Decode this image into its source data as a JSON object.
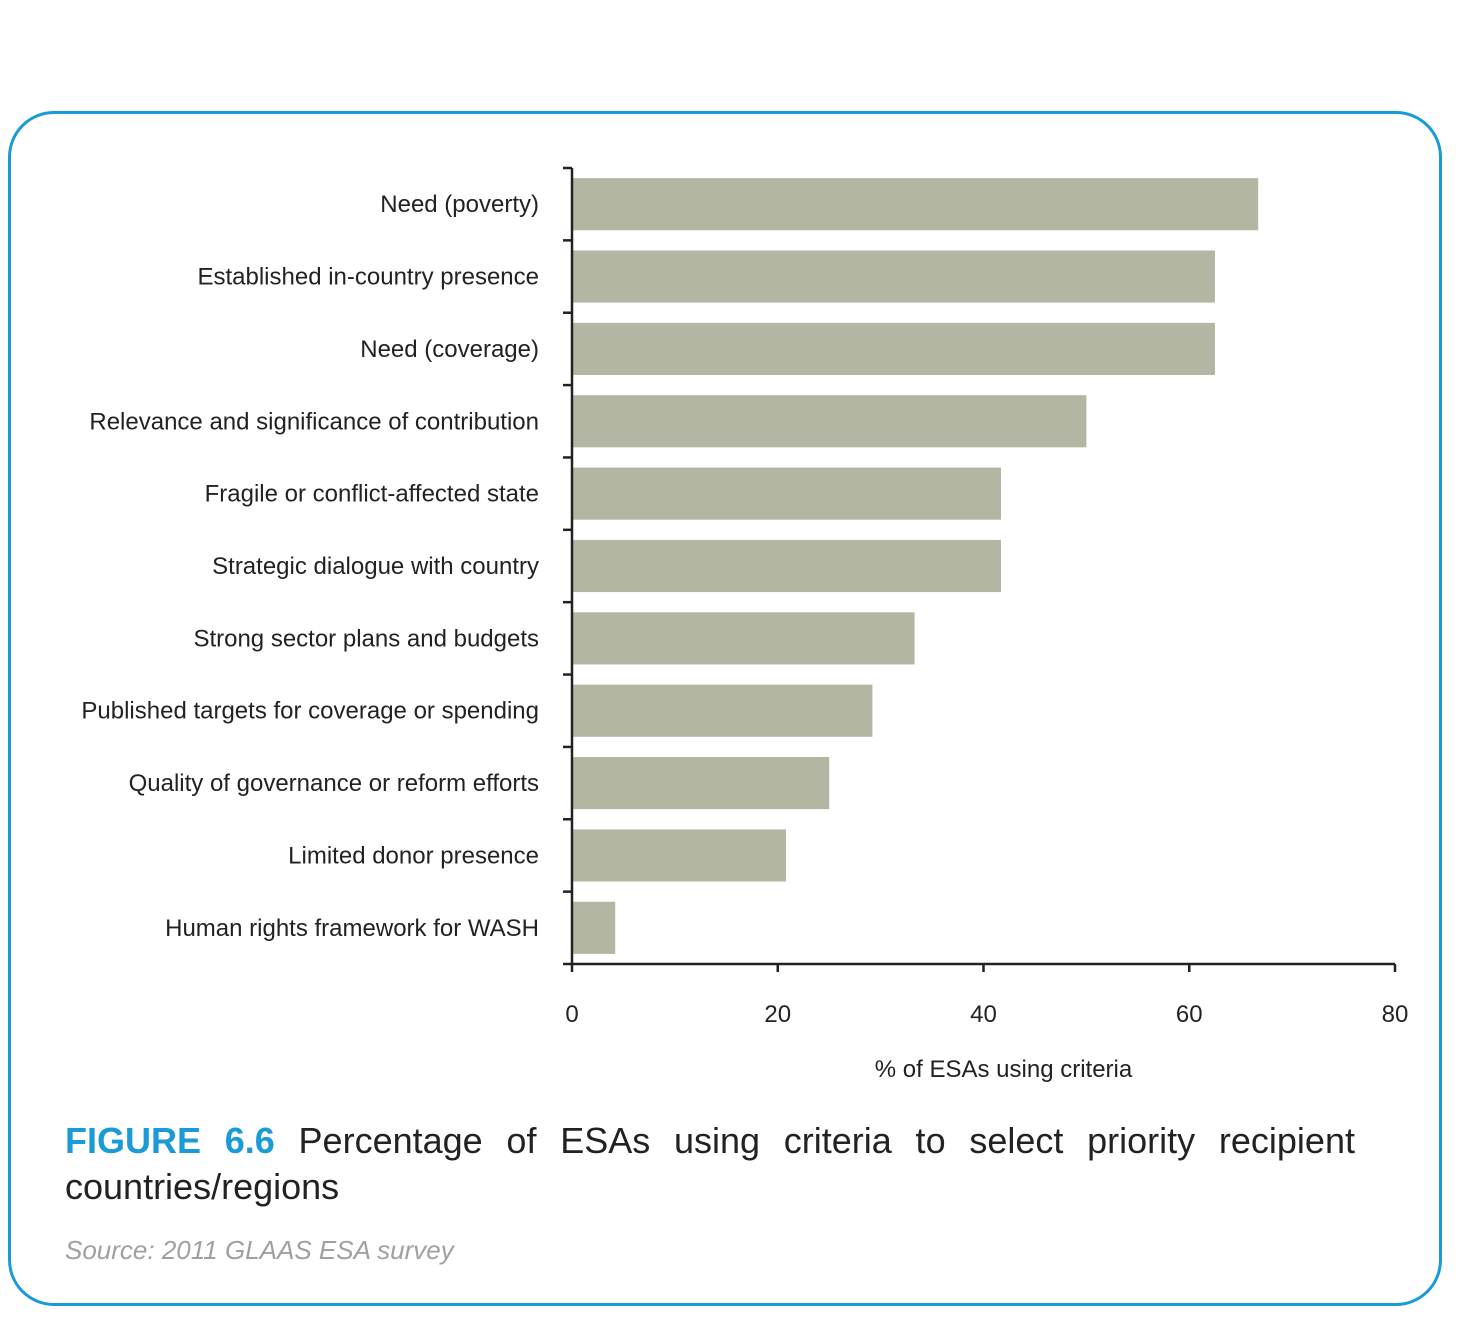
{
  "figure": {
    "number": "FIGURE 6.6",
    "title": "Percentage of ESAs using criteria to select priority recipient countries/regions",
    "source": "Source: 2011 GLAAS ESA survey",
    "frame_color": "#1a9ad6"
  },
  "chart_data": {
    "type": "bar",
    "orientation": "horizontal",
    "categories": [
      "Need (poverty)",
      "Established in-country presence",
      "Need (coverage)",
      "Relevance and significance of contribution",
      "Fragile or conflict-affected state",
      "Strategic dialogue with country",
      "Strong sector plans and budgets",
      "Published targets for coverage or spending",
      "Quality of governance or reform efforts",
      "Limited donor presence",
      "Human rights framework for WASH"
    ],
    "values": [
      66.7,
      62.5,
      62.5,
      50,
      41.7,
      41.7,
      33.3,
      29.2,
      25,
      20.8,
      4.2
    ],
    "xlabel": "% of ESAs using criteria",
    "ylabel": "",
    "xlim": [
      0,
      80
    ],
    "xticks": [
      "0",
      "20",
      "40",
      "60",
      "80"
    ],
    "bar_color": "#b3b6a2",
    "grid": false,
    "legend": "none"
  }
}
